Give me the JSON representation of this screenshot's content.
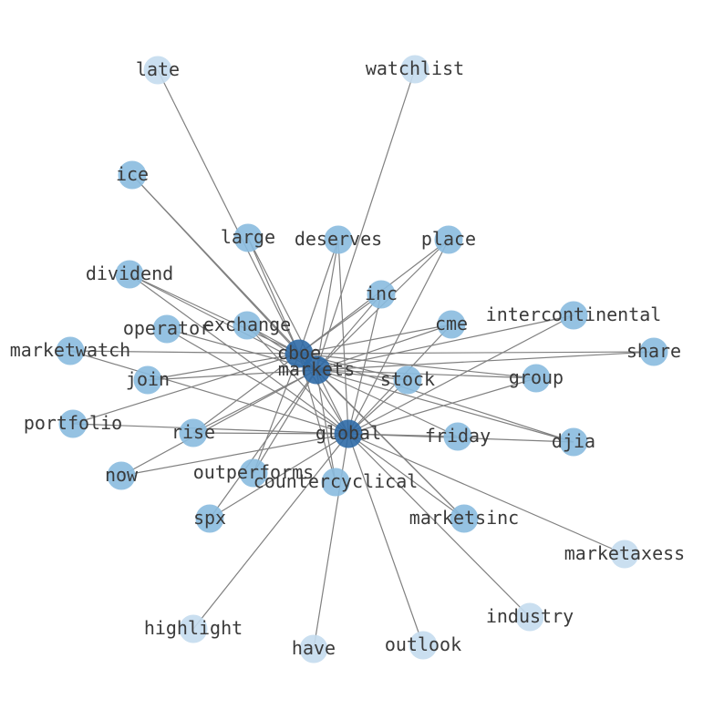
{
  "chart_data": {
    "type": "network",
    "edge_color": "#808080",
    "node_colors": {
      "high": "#2f6aa6",
      "mid": "#89bbdf",
      "low": "#c4dcee"
    },
    "nodes": [
      {
        "id": "late",
        "level": "low"
      },
      {
        "id": "watchlist",
        "level": "low"
      },
      {
        "id": "ice",
        "level": "mid"
      },
      {
        "id": "large",
        "level": "mid"
      },
      {
        "id": "deserves",
        "level": "mid"
      },
      {
        "id": "place",
        "level": "mid"
      },
      {
        "id": "dividend",
        "level": "mid"
      },
      {
        "id": "inc",
        "level": "mid"
      },
      {
        "id": "intercontinental",
        "level": "mid"
      },
      {
        "id": "cme",
        "level": "mid"
      },
      {
        "id": "operator",
        "level": "mid"
      },
      {
        "id": "exchange",
        "level": "mid"
      },
      {
        "id": "marketwatch",
        "level": "mid"
      },
      {
        "id": "share",
        "level": "mid"
      },
      {
        "id": "cboe",
        "level": "high"
      },
      {
        "id": "markets",
        "level": "high"
      },
      {
        "id": "join",
        "level": "mid"
      },
      {
        "id": "stock",
        "level": "mid"
      },
      {
        "id": "group",
        "level": "mid"
      },
      {
        "id": "portfolio",
        "level": "mid"
      },
      {
        "id": "rise",
        "level": "mid"
      },
      {
        "id": "global",
        "level": "high"
      },
      {
        "id": "friday",
        "level": "mid"
      },
      {
        "id": "djia",
        "level": "mid"
      },
      {
        "id": "now",
        "level": "mid"
      },
      {
        "id": "outperforms",
        "level": "mid"
      },
      {
        "id": "countercyclical",
        "level": "mid"
      },
      {
        "id": "spx",
        "level": "mid"
      },
      {
        "id": "marketsinc",
        "level": "mid"
      },
      {
        "id": "marketaxess",
        "level": "low"
      },
      {
        "id": "highlight",
        "level": "low"
      },
      {
        "id": "have",
        "level": "low"
      },
      {
        "id": "outlook",
        "level": "low"
      },
      {
        "id": "industry",
        "level": "low"
      }
    ],
    "edges": [
      [
        "late",
        "cboe"
      ],
      [
        "watchlist",
        "markets"
      ],
      [
        "ice",
        "cboe"
      ],
      [
        "ice",
        "markets"
      ],
      [
        "large",
        "cboe"
      ],
      [
        "large",
        "markets"
      ],
      [
        "deserves",
        "cboe"
      ],
      [
        "deserves",
        "markets"
      ],
      [
        "deserves",
        "global"
      ],
      [
        "place",
        "cboe"
      ],
      [
        "place",
        "markets"
      ],
      [
        "place",
        "global"
      ],
      [
        "dividend",
        "cboe"
      ],
      [
        "dividend",
        "markets"
      ],
      [
        "dividend",
        "global"
      ],
      [
        "inc",
        "cboe"
      ],
      [
        "inc",
        "markets"
      ],
      [
        "inc",
        "global"
      ],
      [
        "intercontinental",
        "markets"
      ],
      [
        "intercontinental",
        "global"
      ],
      [
        "cme",
        "cboe"
      ],
      [
        "cme",
        "markets"
      ],
      [
        "cme",
        "global"
      ],
      [
        "operator",
        "markets"
      ],
      [
        "operator",
        "global"
      ],
      [
        "exchange",
        "cboe"
      ],
      [
        "exchange",
        "markets"
      ],
      [
        "exchange",
        "global"
      ],
      [
        "marketwatch",
        "cboe"
      ],
      [
        "marketwatch",
        "global"
      ],
      [
        "share",
        "cboe"
      ],
      [
        "share",
        "markets"
      ],
      [
        "cboe",
        "markets"
      ],
      [
        "cboe",
        "global"
      ],
      [
        "markets",
        "global"
      ],
      [
        "join",
        "cboe"
      ],
      [
        "join",
        "markets"
      ],
      [
        "stock",
        "cboe"
      ],
      [
        "stock",
        "markets"
      ],
      [
        "stock",
        "global"
      ],
      [
        "group",
        "cboe"
      ],
      [
        "group",
        "markets"
      ],
      [
        "group",
        "global"
      ],
      [
        "portfolio",
        "cboe"
      ],
      [
        "portfolio",
        "global"
      ],
      [
        "rise",
        "cboe"
      ],
      [
        "rise",
        "markets"
      ],
      [
        "rise",
        "global"
      ],
      [
        "friday",
        "markets"
      ],
      [
        "friday",
        "global"
      ],
      [
        "djia",
        "cboe"
      ],
      [
        "djia",
        "markets"
      ],
      [
        "djia",
        "global"
      ],
      [
        "now",
        "markets"
      ],
      [
        "now",
        "global"
      ],
      [
        "outperforms",
        "cboe"
      ],
      [
        "outperforms",
        "markets"
      ],
      [
        "countercyclical",
        "cboe"
      ],
      [
        "countercyclical",
        "markets"
      ],
      [
        "spx",
        "markets"
      ],
      [
        "spx",
        "global"
      ],
      [
        "marketsinc",
        "cboe"
      ],
      [
        "marketsinc",
        "markets"
      ],
      [
        "marketsinc",
        "global"
      ],
      [
        "marketaxess",
        "global"
      ],
      [
        "highlight",
        "global"
      ],
      [
        "have",
        "global"
      ],
      [
        "outlook",
        "global"
      ],
      [
        "industry",
        "global"
      ]
    ]
  }
}
